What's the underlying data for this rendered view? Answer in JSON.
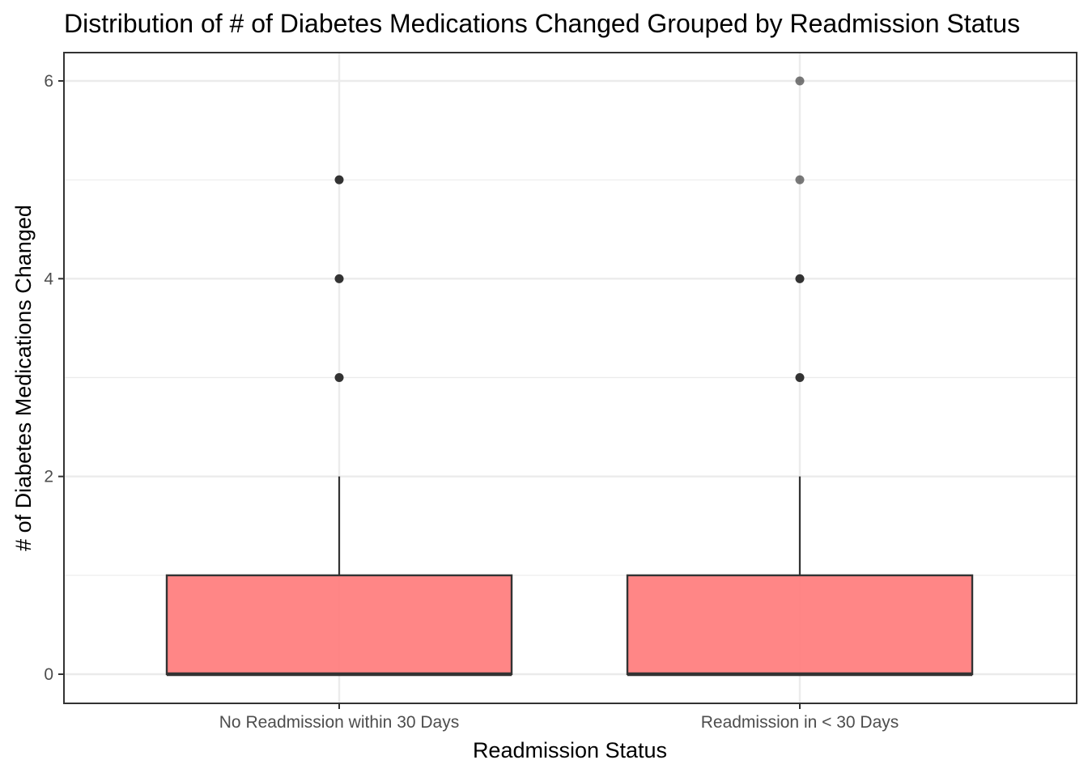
{
  "chart_data": {
    "type": "boxplot",
    "title": "Distribution of # of Diabetes Medications Changed Grouped by Readmission Status",
    "xlabel": "Readmission Status",
    "ylabel": "# of Diabetes Medications Changed",
    "ylim": [
      -0.6,
      6.3
    ],
    "yticks": [
      0,
      2,
      4,
      6
    ],
    "grid": true,
    "fill_color": "#ff7f7f",
    "categories": [
      "No Readmission within 30 Days",
      "Readmission in < 30 Days"
    ],
    "boxes": [
      {
        "min": 0,
        "q1": 0,
        "median": 0,
        "q3": 1,
        "max": 2,
        "outliers": [
          3,
          4,
          5
        ]
      },
      {
        "min": 0,
        "q1": 0,
        "median": 0,
        "q3": 1,
        "max": 2,
        "outliers": [
          3,
          4,
          5,
          6
        ]
      }
    ]
  }
}
